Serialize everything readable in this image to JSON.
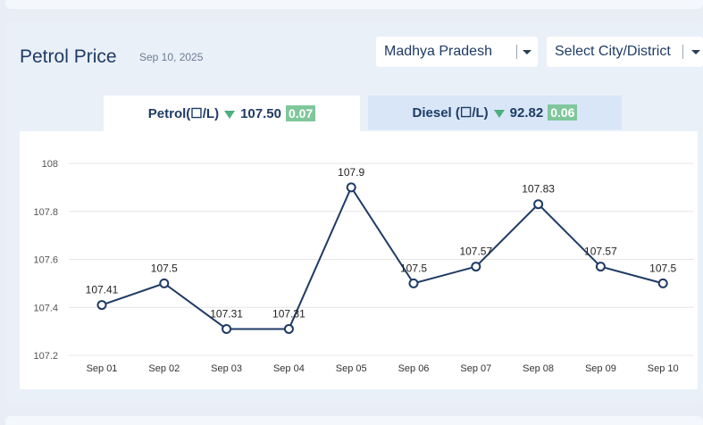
{
  "header": {
    "title": "Petrol Price",
    "date": "Sep 10, 2025"
  },
  "selects": {
    "state": "Madhya Pradesh",
    "city": "Select City/District"
  },
  "tabs": {
    "petrol": {
      "label": "Petrol(☐/L)",
      "price": "107.50",
      "change": "0.07",
      "trend": "down"
    },
    "diesel": {
      "label": "Diesel (☐/L)",
      "price": "92.82",
      "change": "0.06",
      "trend": "down"
    }
  },
  "colors": {
    "line": "#1f3b64",
    "badge": "#7fc79b",
    "trend_down": "#4caf7f"
  },
  "chart_data": {
    "type": "line",
    "categories": [
      "Sep 01",
      "Sep 02",
      "Sep 03",
      "Sep 04",
      "Sep 05",
      "Sep 06",
      "Sep 07",
      "Sep 08",
      "Sep 09",
      "Sep 10"
    ],
    "values": [
      107.41,
      107.5,
      107.31,
      107.31,
      107.9,
      107.5,
      107.57,
      107.83,
      107.57,
      107.5
    ],
    "data_labels": [
      "107.41",
      "107.5",
      "107.31",
      "107.31",
      "107.9",
      "107.5",
      "107.57",
      "107.83",
      "107.57",
      "107.5"
    ],
    "yticks": [
      "107.2",
      "107.4",
      "107.6",
      "107.8",
      "108"
    ],
    "ylim": [
      107.2,
      108
    ],
    "grid": true
  }
}
